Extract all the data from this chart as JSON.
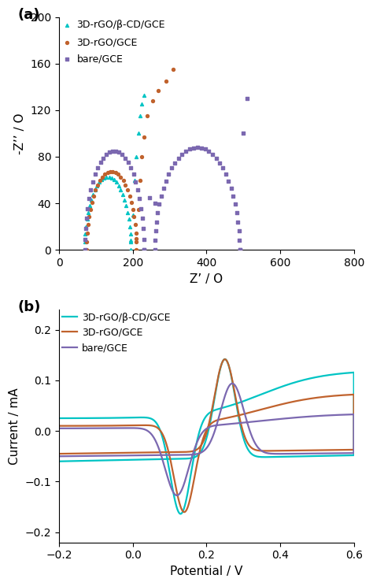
{
  "fig_width": 4.74,
  "fig_height": 7.44,
  "dpi": 100,
  "colors": {
    "cyan": "#00C4C4",
    "orange": "#C0622D",
    "purple": "#7B68B0"
  },
  "panel_a": {
    "label": "(a)",
    "xlabel": "Z’ / O",
    "ylabel": "-Z’’ / O",
    "xlim": [
      0,
      800
    ],
    "ylim": [
      0,
      200
    ],
    "xticks": [
      0,
      200,
      400,
      600,
      800
    ],
    "yticks": [
      0,
      40,
      80,
      120,
      160,
      200
    ],
    "legend": [
      "3D-rGO/β-CD/GCE",
      "3D-rGO/GCE",
      "bare/GCE"
    ]
  },
  "panel_b": {
    "label": "(b)",
    "xlabel": "Potential / V",
    "ylabel": "Current / mA",
    "xlim": [
      -0.2,
      0.6
    ],
    "ylim": [
      -0.22,
      0.24
    ],
    "xticks": [
      -0.2,
      0.0,
      0.2,
      0.4,
      0.6
    ],
    "yticks": [
      -0.2,
      -0.1,
      0.0,
      0.1,
      0.2
    ],
    "legend": [
      "3D-rGO/β-CD/GCE",
      "3D-rGO/GCE",
      "bare/GCE"
    ]
  }
}
